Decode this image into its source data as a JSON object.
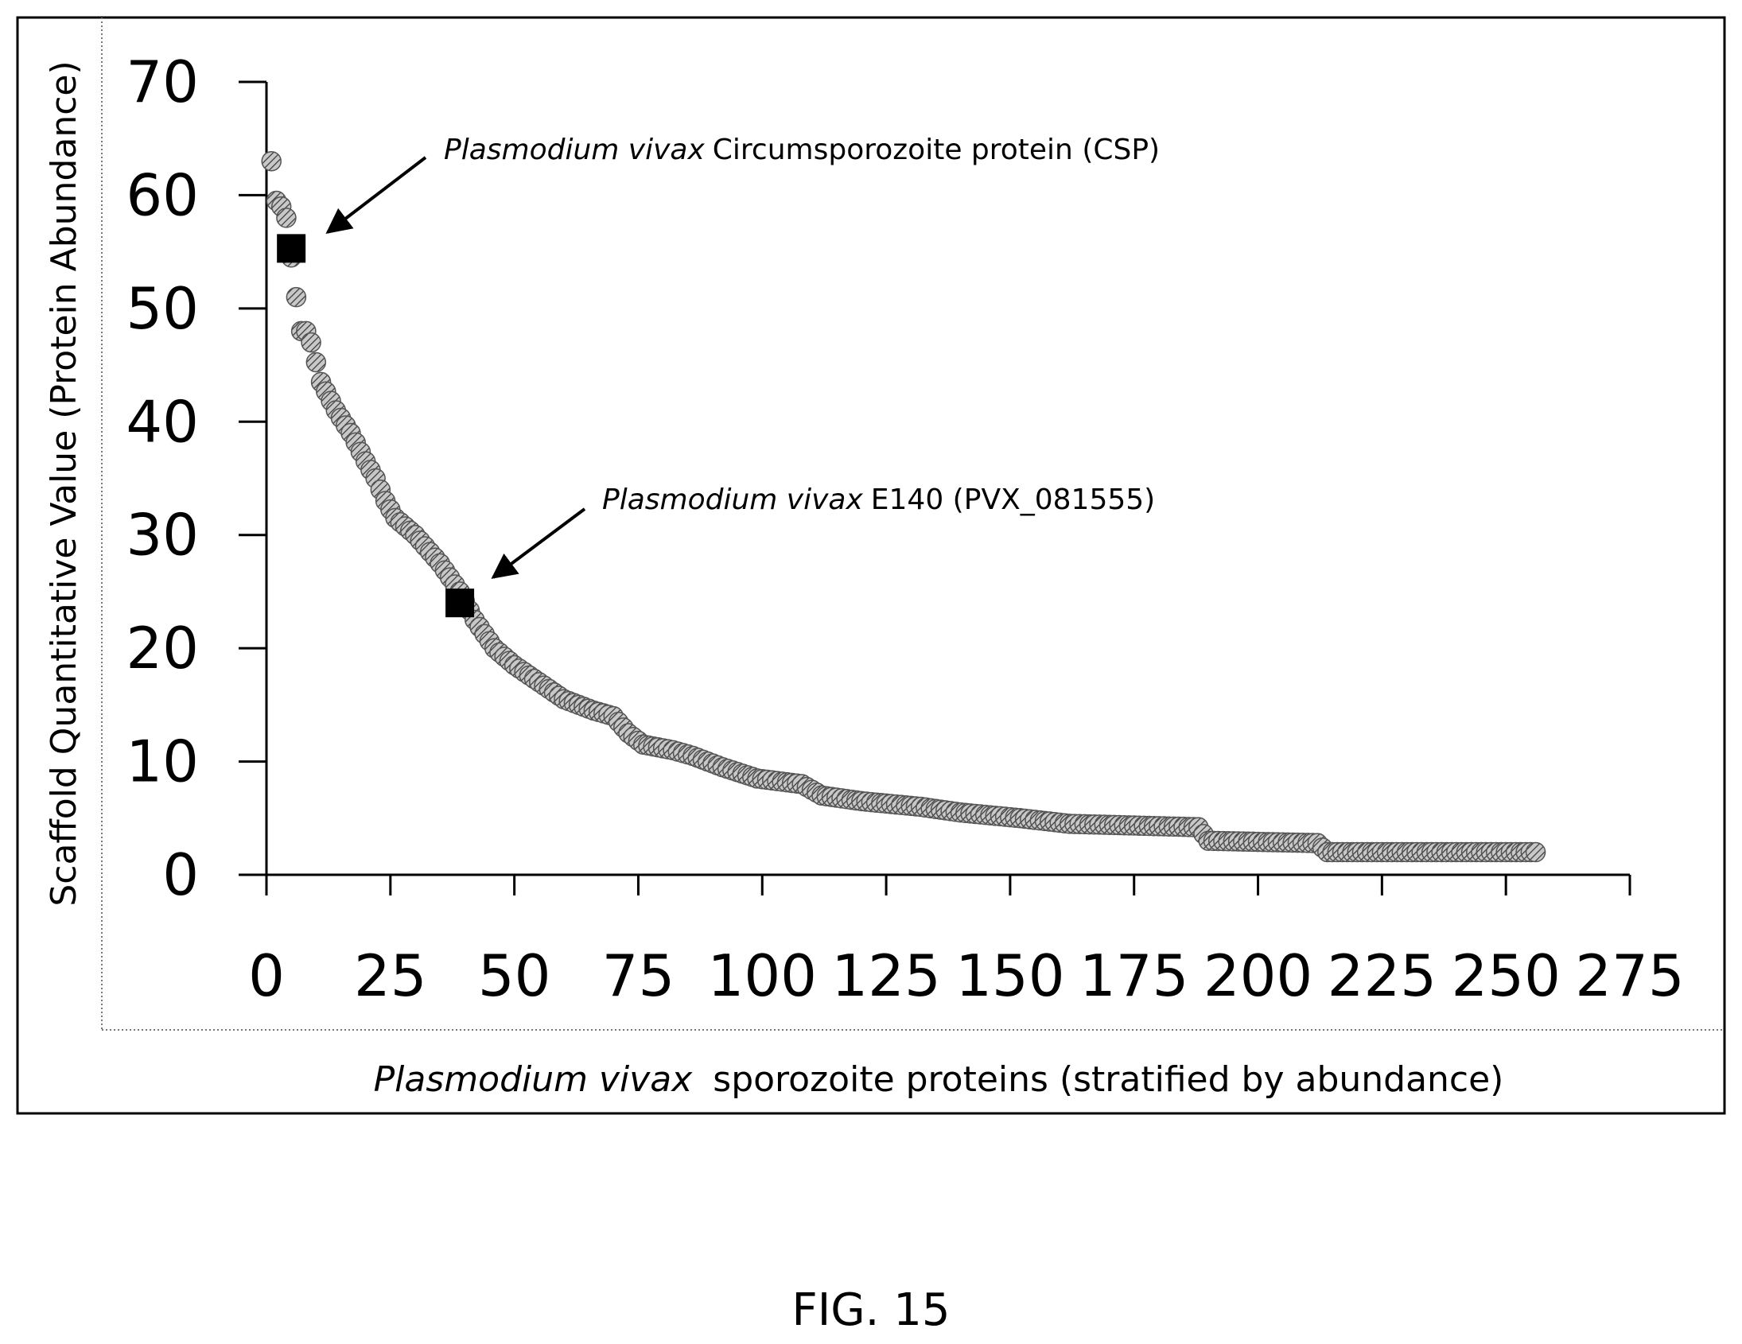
{
  "figure_label": "FIG. 15",
  "chart_data": {
    "type": "scatter",
    "ylabel": "Scaffold Quantitative Value (Protein Abundance)",
    "xlabel_italic": "Plasmodium vivax",
    "xlabel_rest": "sporozoite proteins (stratified by abundance)",
    "xlim": [
      0,
      275
    ],
    "ylim": [
      0,
      70
    ],
    "xticks": [
      0,
      25,
      50,
      75,
      100,
      125,
      150,
      175,
      200,
      225,
      250,
      275
    ],
    "yticks": [
      0,
      10,
      20,
      30,
      40,
      50,
      60,
      70
    ],
    "grid": false,
    "series": [
      {
        "marker": "circle-hatched",
        "profile": [
          [
            1,
            63
          ],
          [
            2,
            59.5
          ],
          [
            3,
            59
          ],
          [
            4,
            58
          ],
          [
            6,
            51
          ],
          [
            7,
            48
          ],
          [
            8,
            48
          ],
          [
            9,
            47
          ],
          [
            11,
            43.5
          ],
          [
            14,
            41
          ],
          [
            17,
            39
          ],
          [
            20,
            36.5
          ],
          [
            22,
            35
          ],
          [
            24,
            33
          ],
          [
            26,
            31.5
          ],
          [
            30,
            30
          ],
          [
            35,
            27.5
          ],
          [
            39,
            25
          ],
          [
            42,
            22.5
          ],
          [
            46,
            20
          ],
          [
            50,
            18.5
          ],
          [
            55,
            17
          ],
          [
            60,
            15.5
          ],
          [
            66,
            14.5
          ],
          [
            70,
            14
          ],
          [
            73,
            12.5
          ],
          [
            76,
            11.5
          ],
          [
            82,
            11
          ],
          [
            86,
            10.5
          ],
          [
            92,
            9.5
          ],
          [
            99,
            8.5
          ],
          [
            108,
            8
          ],
          [
            112,
            7
          ],
          [
            120,
            6.5
          ],
          [
            132,
            6
          ],
          [
            140,
            5.5
          ],
          [
            152,
            5
          ],
          [
            162,
            4.5
          ],
          [
            188,
            4.2
          ],
          [
            190,
            3
          ],
          [
            212,
            2.8
          ],
          [
            214,
            2
          ],
          [
            256,
            2
          ]
        ],
        "count": 256
      },
      {
        "marker": "square-filled",
        "points": [
          [
            5,
            55.3
          ],
          [
            39,
            24
          ]
        ]
      }
    ],
    "annotations": [
      {
        "text_italic": "Plasmodium vivax",
        "text_rest": "Circumsporozoite protein (CSP)",
        "target": [
          5,
          55.3
        ]
      },
      {
        "text_italic": "Plasmodium vivax",
        "text_rest": "E140 (PVX_081555)",
        "target": [
          39,
          24
        ]
      }
    ]
  }
}
